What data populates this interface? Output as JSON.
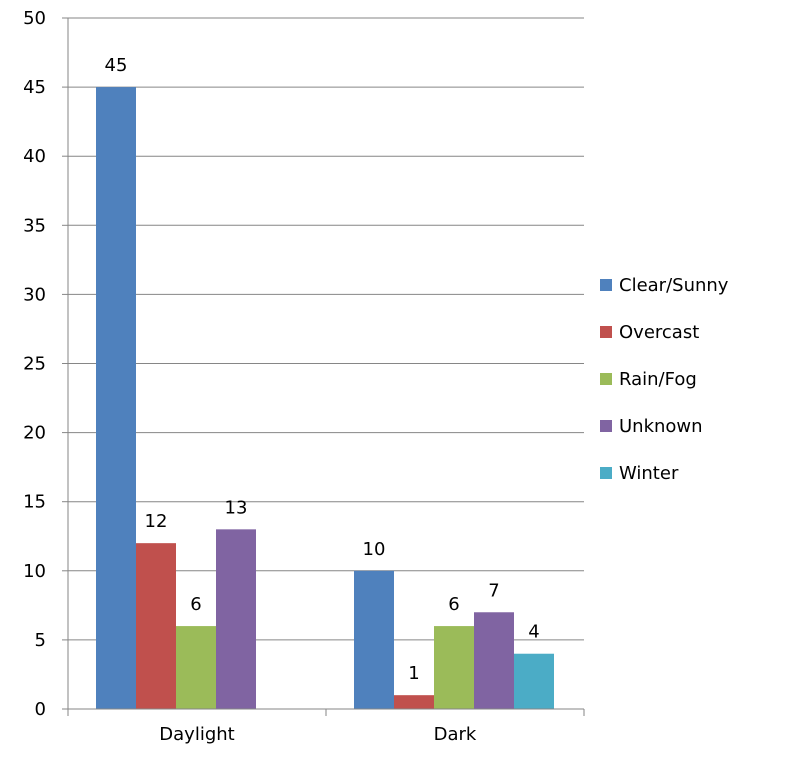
{
  "chart_data": {
    "type": "bar",
    "categories": [
      "Daylight",
      "Dark"
    ],
    "series": [
      {
        "name": "Clear/Sunny",
        "color": "#4F81BD",
        "values": [
          45,
          10
        ]
      },
      {
        "name": "Overcast",
        "color": "#C0504D",
        "values": [
          12,
          1
        ]
      },
      {
        "name": "Rain/Fog",
        "color": "#9BBB59",
        "values": [
          6,
          6
        ]
      },
      {
        "name": "Unknown",
        "color": "#8064A2",
        "values": [
          13,
          7
        ]
      },
      {
        "name": "Winter",
        "color": "#4BACC6",
        "values": [
          null,
          4
        ]
      }
    ],
    "ylim": [
      0,
      50
    ],
    "yticks": [
      0,
      5,
      10,
      15,
      20,
      25,
      30,
      35,
      40,
      45,
      50
    ],
    "title": "",
    "xlabel": "",
    "ylabel": "",
    "grid": true,
    "legend_position": "right",
    "data_labels": true
  }
}
